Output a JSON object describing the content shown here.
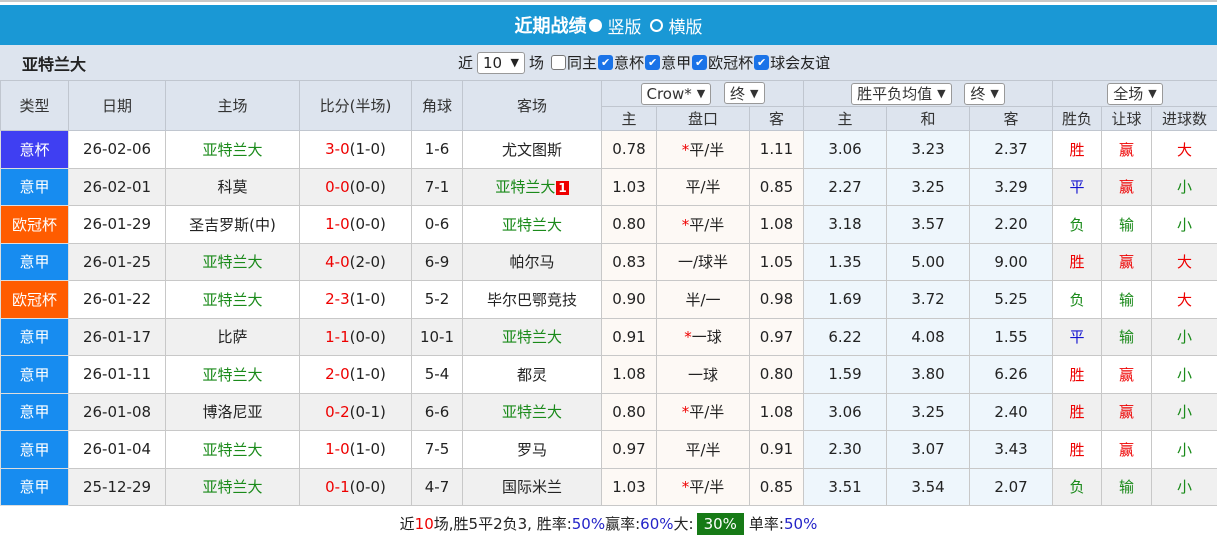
{
  "header": {
    "title": "近期战绩",
    "option_vertical": "竖版",
    "option_horizontal": "横版",
    "selected": "vertical"
  },
  "filter": {
    "team": "亚特兰大",
    "recent_label": "近",
    "recent_value": "10",
    "games_label": "场",
    "checks": [
      {
        "label": "同主",
        "checked": false
      },
      {
        "label": "意杯",
        "checked": true
      },
      {
        "label": "意甲",
        "checked": true
      },
      {
        "label": "欧冠杯",
        "checked": true
      },
      {
        "label": "球会友谊",
        "checked": true
      }
    ]
  },
  "columns": {
    "type": "类型",
    "date": "日期",
    "home": "主场",
    "score": "比分(半场)",
    "corner": "角球",
    "away": "客场",
    "company_select": "Crow*",
    "final_select_1": "终",
    "odds_select": "胜平负均值",
    "final_select_2": "终",
    "period_select": "全场",
    "hc_home": "主",
    "hc_line": "盘口",
    "hc_away": "客",
    "eu_home": "主",
    "eu_draw": "和",
    "eu_away": "客",
    "wl": "胜负",
    "ah": "让球",
    "ou": "进球数"
  },
  "colors": {
    "意杯": "#3f3ff2",
    "意甲": "#178cf0",
    "欧冠杯": "#ff5c00"
  },
  "rows": [
    {
      "type": "意杯",
      "date": "26-02-06",
      "home": "亚特兰大",
      "score": "3-0",
      "half": "(1-0)",
      "corner": "1-6",
      "away": "尤文图斯",
      "hh": "0.78",
      "star": "*",
      "line": "平/半",
      "ha": "1.11",
      "eh": "3.06",
      "ed": "3.23",
      "ea": "2.37",
      "wl": "胜",
      "ah": "赢",
      "ou": "大"
    },
    {
      "type": "意甲",
      "date": "26-02-01",
      "home": "科莫",
      "score": "0-0",
      "half": "(0-0)",
      "corner": "7-1",
      "away": "亚特兰大",
      "badge": "1",
      "hh": "1.03",
      "star": "",
      "line": "平/半",
      "ha": "0.85",
      "eh": "2.27",
      "ed": "3.25",
      "ea": "3.29",
      "wl": "平",
      "ah": "赢",
      "ou": "小"
    },
    {
      "type": "欧冠杯",
      "date": "26-01-29",
      "home": "圣吉罗斯(中)",
      "score": "1-0",
      "half": "(0-0)",
      "corner": "0-6",
      "away": "亚特兰大",
      "hh": "0.80",
      "star": "*",
      "line": "平/半",
      "ha": "1.08",
      "eh": "3.18",
      "ed": "3.57",
      "ea": "2.20",
      "wl": "负",
      "ah": "输",
      "ou": "小"
    },
    {
      "type": "意甲",
      "date": "26-01-25",
      "home": "亚特兰大",
      "score": "4-0",
      "half": "(2-0)",
      "corner": "6-9",
      "away": "帕尔马",
      "hh": "0.83",
      "star": "",
      "line": "一/球半",
      "ha": "1.05",
      "eh": "1.35",
      "ed": "5.00",
      "ea": "9.00",
      "wl": "胜",
      "ah": "赢",
      "ou": "大"
    },
    {
      "type": "欧冠杯",
      "date": "26-01-22",
      "home": "亚特兰大",
      "score": "2-3",
      "half": "(1-0)",
      "corner": "5-2",
      "away": "毕尔巴鄂竞技",
      "hh": "0.90",
      "star": "",
      "line": "半/一",
      "ha": "0.98",
      "eh": "1.69",
      "ed": "3.72",
      "ea": "5.25",
      "wl": "负",
      "ah": "输",
      "ou": "大"
    },
    {
      "type": "意甲",
      "date": "26-01-17",
      "home": "比萨",
      "score": "1-1",
      "half": "(0-0)",
      "corner": "10-1",
      "away": "亚特兰大",
      "hh": "0.91",
      "star": "*",
      "line": "一球",
      "ha": "0.97",
      "eh": "6.22",
      "ed": "4.08",
      "ea": "1.55",
      "wl": "平",
      "ah": "输",
      "ou": "小"
    },
    {
      "type": "意甲",
      "date": "26-01-11",
      "home": "亚特兰大",
      "score": "2-0",
      "half": "(1-0)",
      "corner": "5-4",
      "away": "都灵",
      "hh": "1.08",
      "star": "",
      "line": "一球",
      "ha": "0.80",
      "eh": "1.59",
      "ed": "3.80",
      "ea": "6.26",
      "wl": "胜",
      "ah": "赢",
      "ou": "小"
    },
    {
      "type": "意甲",
      "date": "26-01-08",
      "home": "博洛尼亚",
      "score": "0-2",
      "half": "(0-1)",
      "corner": "6-6",
      "away": "亚特兰大",
      "hh": "0.80",
      "star": "*",
      "line": "平/半",
      "ha": "1.08",
      "eh": "3.06",
      "ed": "3.25",
      "ea": "2.40",
      "wl": "胜",
      "ah": "赢",
      "ou": "小"
    },
    {
      "type": "意甲",
      "date": "26-01-04",
      "home": "亚特兰大",
      "score": "1-0",
      "half": "(1-0)",
      "corner": "7-5",
      "away": "罗马",
      "hh": "0.97",
      "star": "",
      "line": "平/半",
      "ha": "0.91",
      "eh": "2.30",
      "ed": "3.07",
      "ea": "3.43",
      "wl": "胜",
      "ah": "赢",
      "ou": "小"
    },
    {
      "type": "意甲",
      "date": "25-12-29",
      "home": "亚特兰大",
      "score": "0-1",
      "half": "(0-0)",
      "corner": "4-7",
      "away": "国际米兰",
      "hh": "1.03",
      "star": "*",
      "line": "平/半",
      "ha": "0.85",
      "eh": "3.51",
      "ed": "3.54",
      "ea": "2.07",
      "wl": "负",
      "ah": "输",
      "ou": "小"
    }
  ],
  "footer": {
    "prefix": "近",
    "count": "10",
    "summary": "场,胜5平2负3, 胜率:",
    "win_rate": "50%",
    "ah_label": " 赢率:",
    "ah_rate": "60%",
    "over_label": " 大:",
    "over_rate": "30%",
    "odd_label": "单率:",
    "odd_rate": "50%"
  }
}
